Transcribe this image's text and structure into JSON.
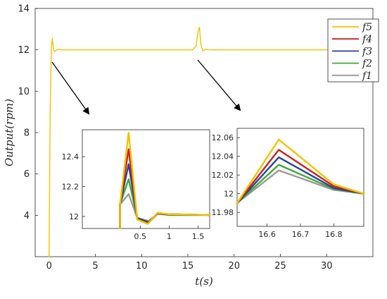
{
  "chart_data": [
    {
      "id": "main",
      "type": "line",
      "xlabel": "t(s)",
      "ylabel": "Output(rpm)",
      "xlim": [
        -1.5,
        35
      ],
      "ylim": [
        2,
        14
      ],
      "xticks": [
        0,
        5,
        10,
        15,
        20,
        25,
        30
      ],
      "yticks": [
        4,
        6,
        8,
        10,
        12,
        14
      ],
      "grid": false,
      "legend_position": "top-right",
      "series": [
        {
          "name": "f5",
          "color": "#F2C300",
          "x": [
            0,
            0.12,
            0.25,
            0.35,
            0.5,
            0.6,
            0.7,
            0.85,
            1.0,
            1.5,
            15.5,
            15.9,
            16.1,
            16.25,
            16.4,
            16.6,
            16.8,
            17.0,
            17.5,
            35
          ],
          "y": [
            2,
            9,
            12.1,
            12.55,
            12.0,
            11.92,
            11.97,
            12.0,
            12.02,
            12.0,
            12.0,
            12.2,
            12.9,
            13.1,
            12.3,
            11.95,
            12.0,
            12.02,
            12.0,
            12.0
          ]
        },
        {
          "name": "f4",
          "color": "#C8231F",
          "x": [],
          "y": []
        },
        {
          "name": "f3",
          "color": "#2E3F9B",
          "x": [],
          "y": []
        },
        {
          "name": "f2",
          "color": "#3DAA35",
          "x": [],
          "y": []
        },
        {
          "name": "f1",
          "color": "#999999",
          "x": [],
          "y": []
        }
      ]
    },
    {
      "id": "inset-left",
      "type": "line",
      "xlim": [
        -0.5,
        1.7
      ],
      "ylim": [
        11.92,
        12.58
      ],
      "xticks": [
        0.5,
        1,
        1.5
      ],
      "xtick_labels": [
        "0.5",
        "1",
        "1.5"
      ],
      "yticks": [
        12,
        12.2,
        12.4
      ],
      "ytick_labels": [
        "12",
        "12.2",
        "12.4"
      ],
      "series": [
        {
          "name": "f1",
          "color": "#999999",
          "x": [
            0.15,
            0.15,
            0.3,
            0.45,
            0.65,
            0.8,
            1.0,
            1.7
          ],
          "y": [
            11.92,
            12.08,
            12.15,
            11.99,
            11.97,
            12.02,
            12.01,
            12.01
          ]
        },
        {
          "name": "f2",
          "color": "#3DAA35",
          "x": [
            0.15,
            0.15,
            0.3,
            0.45,
            0.65,
            0.8,
            1.0,
            1.7
          ],
          "y": [
            11.92,
            12.08,
            12.25,
            11.99,
            11.965,
            12.02,
            12.01,
            12.01
          ]
        },
        {
          "name": "f3",
          "color": "#2E3F9B",
          "x": [
            0.15,
            0.15,
            0.3,
            0.45,
            0.64,
            0.8,
            1.0,
            1.7
          ],
          "y": [
            11.92,
            12.08,
            12.35,
            11.99,
            11.96,
            12.02,
            12.015,
            12.01
          ]
        },
        {
          "name": "f4",
          "color": "#C8231F",
          "x": [
            0.15,
            0.15,
            0.3,
            0.45,
            0.64,
            0.8,
            1.0,
            1.7
          ],
          "y": [
            11.92,
            12.08,
            12.45,
            11.98,
            11.955,
            12.02,
            12.015,
            12.01
          ]
        },
        {
          "name": "f5",
          "color": "#F2C300",
          "x": [
            0.15,
            0.15,
            0.3,
            0.45,
            0.63,
            0.8,
            1.0,
            1.7
          ],
          "y": [
            11.92,
            12.08,
            12.56,
            11.98,
            11.95,
            12.025,
            12.015,
            12.01
          ]
        }
      ]
    },
    {
      "id": "inset-right",
      "type": "line",
      "xlim": [
        16.51,
        16.89
      ],
      "ylim": [
        11.965,
        12.07
      ],
      "xticks": [
        16.6,
        16.7,
        16.8
      ],
      "xtick_labels": [
        "16.6",
        "16.7",
        "16.8"
      ],
      "yticks": [
        11.98,
        12,
        12.02,
        12.04,
        12.06
      ],
      "ytick_labels": [
        "11.98",
        "12",
        "12.02",
        "12.04",
        "12.06"
      ],
      "series": [
        {
          "name": "f1",
          "color": "#999999",
          "x": [
            16.51,
            16.635,
            16.8,
            16.89
          ],
          "y": [
            11.99,
            12.025,
            12.004,
            12.0
          ]
        },
        {
          "name": "f2",
          "color": "#3DAA35",
          "x": [
            16.51,
            16.635,
            16.8,
            16.89
          ],
          "y": [
            11.99,
            12.031,
            12.005,
            12.0
          ]
        },
        {
          "name": "f3",
          "color": "#2E3F9B",
          "x": [
            16.51,
            16.635,
            16.8,
            16.89
          ],
          "y": [
            11.99,
            12.039,
            12.006,
            12.0
          ]
        },
        {
          "name": "f4",
          "color": "#C8231F",
          "x": [
            16.51,
            16.635,
            16.8,
            16.89
          ],
          "y": [
            11.99,
            12.047,
            12.008,
            12.0
          ]
        },
        {
          "name": "f5",
          "color": "#F2C300",
          "x": [
            16.51,
            16.635,
            16.8,
            16.89
          ],
          "y": [
            11.99,
            12.058,
            12.01,
            12.0
          ]
        }
      ]
    }
  ],
  "legend": {
    "items": [
      {
        "label": "f5",
        "color": "#F2C300"
      },
      {
        "label": "f4",
        "color": "#C8231F"
      },
      {
        "label": "f3",
        "color": "#2E3F9B"
      },
      {
        "label": "f2",
        "color": "#3DAA35"
      },
      {
        "label": "f1",
        "color": "#999999"
      }
    ]
  }
}
